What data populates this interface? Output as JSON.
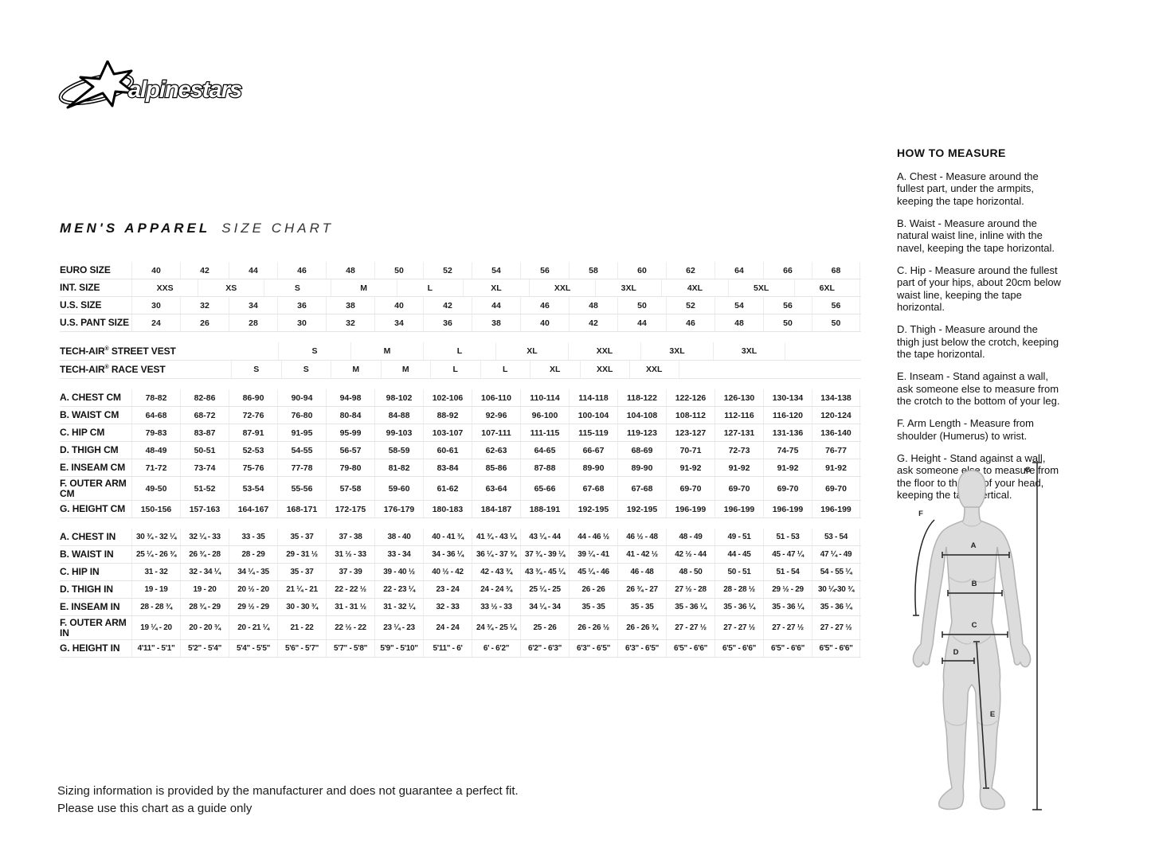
{
  "brand": {
    "logo_text": "alpinestars"
  },
  "title": {
    "main": "MEN'S APPAREL",
    "sub": "SIZE CHART"
  },
  "size_table": {
    "header_rows": [
      {
        "label": "EURO SIZE",
        "type": "cols",
        "values": [
          "40",
          "42",
          "44",
          "46",
          "48",
          "50",
          "52",
          "54",
          "56",
          "58",
          "60",
          "62",
          "64",
          "66",
          "68"
        ]
      },
      {
        "label": "INT. SIZE",
        "type": "int",
        "values": [
          "XXS",
          "XS",
          "S",
          "M",
          "L",
          "XL",
          "XXL",
          "3XL",
          "4XL",
          "5XL",
          "6XL"
        ]
      },
      {
        "label": "U.S. SIZE",
        "type": "cols",
        "values": [
          "30",
          "32",
          "34",
          "36",
          "38",
          "40",
          "42",
          "44",
          "46",
          "48",
          "50",
          "52",
          "54",
          "56",
          "56"
        ]
      },
      {
        "label": "U.S. PANT SIZE",
        "type": "cols",
        "values": [
          "24",
          "26",
          "28",
          "30",
          "32",
          "34",
          "36",
          "38",
          "40",
          "42",
          "44",
          "46",
          "48",
          "50",
          "50"
        ]
      }
    ],
    "vest_rows": [
      {
        "label": "TECH-AIR® STREET VEST",
        "type": "street",
        "values": [
          "S",
          "M",
          "L",
          "XL",
          "XXL",
          "3XL",
          "3XL"
        ]
      },
      {
        "label": "TECH-AIR® RACE VEST",
        "type": "race",
        "values": [
          "S",
          "S",
          "M",
          "M",
          "L",
          "L",
          "XL",
          "XXL",
          "XXL"
        ]
      }
    ],
    "cm_rows": [
      {
        "label": "A. CHEST CM",
        "type": "cols",
        "values": [
          "78-82",
          "82-86",
          "86-90",
          "90-94",
          "94-98",
          "98-102",
          "102-106",
          "106-110",
          "110-114",
          "114-118",
          "118-122",
          "122-126",
          "126-130",
          "130-134",
          "134-138"
        ]
      },
      {
        "label": "B. WAIST CM",
        "type": "cols",
        "values": [
          "64-68",
          "68-72",
          "72-76",
          "76-80",
          "80-84",
          "84-88",
          "88-92",
          "92-96",
          "96-100",
          "100-104",
          "104-108",
          "108-112",
          "112-116",
          "116-120",
          "120-124"
        ]
      },
      {
        "label": "C. HIP CM",
        "type": "cols",
        "values": [
          "79-83",
          "83-87",
          "87-91",
          "91-95",
          "95-99",
          "99-103",
          "103-107",
          "107-111",
          "111-115",
          "115-119",
          "119-123",
          "123-127",
          "127-131",
          "131-136",
          "136-140"
        ]
      },
      {
        "label": "D. THIGH CM",
        "type": "cols",
        "values": [
          "48-49",
          "50-51",
          "52-53",
          "54-55",
          "56-57",
          "58-59",
          "60-61",
          "62-63",
          "64-65",
          "66-67",
          "68-69",
          "70-71",
          "72-73",
          "74-75",
          "76-77"
        ]
      },
      {
        "label": "E. INSEAM CM",
        "type": "cols",
        "values": [
          "71-72",
          "73-74",
          "75-76",
          "77-78",
          "79-80",
          "81-82",
          "83-84",
          "85-86",
          "87-88",
          "89-90",
          "89-90",
          "91-92",
          "91-92",
          "91-92",
          "91-92"
        ]
      },
      {
        "label": "F. OUTER ARM CM",
        "type": "cols",
        "wrap": true,
        "values": [
          "49-50",
          "51-52",
          "53-54",
          "55-56",
          "57-58",
          "59-60",
          "61-62",
          "63-64",
          "65-66",
          "67-68",
          "67-68",
          "69-70",
          "69-70",
          "69-70",
          "69-70"
        ]
      },
      {
        "label": "G. HEIGHT CM",
        "type": "cols",
        "values": [
          "150-156",
          "157-163",
          "164-167",
          "168-171",
          "172-175",
          "176-179",
          "180-183",
          "184-187",
          "188-191",
          "192-195",
          "192-195",
          "196-199",
          "196-199",
          "196-199",
          "196-199"
        ]
      }
    ],
    "in_rows": [
      {
        "label": "A. CHEST IN",
        "type": "cols",
        "values": [
          "30 ¾ - 32 ¼",
          "32 ¼ - 33",
          "33 - 35",
          "35 - 37",
          "37 - 38",
          "38 - 40",
          "40 - 41 ¾",
          "41 ¾ - 43 ¼",
          "43 ¼ - 44",
          "44 - 46 ½",
          "46 ½ - 48",
          "48 - 49",
          "49 - 51",
          "51 - 53",
          "53 - 54"
        ]
      },
      {
        "label": "B. WAIST IN",
        "type": "cols",
        "values": [
          "25 ¼ - 26 ¾",
          "26 ¾ - 28",
          "28 - 29",
          "29 - 31 ½",
          "31 ½ - 33",
          "33 - 34",
          "34 - 36 ¼",
          "36 ¼ - 37 ¾",
          "37 ¾ - 39 ¼",
          "39 ¼ - 41",
          "41 - 42 ½",
          "42 ½ - 44",
          "44 - 45",
          "45 - 47 ¼",
          "47 ¼ - 49"
        ]
      },
      {
        "label": "C. HIP IN",
        "type": "cols",
        "values": [
          "31 - 32",
          "32 - 34 ¼",
          "34 ¼ - 35",
          "35 - 37",
          "37 - 39",
          "39 - 40 ½",
          "40 ½ - 42",
          "42 - 43 ¾",
          "43 ¾ - 45 ¼",
          "45 ¼ - 46",
          "46 - 48",
          "48 - 50",
          "50 - 51",
          "51 - 54",
          "54 - 55 ¼"
        ]
      },
      {
        "label": "D. THIGH IN",
        "type": "cols",
        "values": [
          "19 - 19",
          "19 - 20",
          "20 ½ - 20",
          "21 ¼ - 21",
          "22 - 22 ½",
          "22 - 23 ¼",
          "23 - 24",
          "24 - 24 ¾",
          "25 ¼ - 25",
          "26 - 26",
          "26 ¾ - 27",
          "27 ½ - 28",
          "28 - 28 ½",
          "29 ½ - 29",
          "30 ¼-30 ¾"
        ]
      },
      {
        "label": "E. INSEAM IN",
        "type": "cols",
        "values": [
          "28 - 28 ¾",
          "28 ¾ - 29",
          "29 ½ - 29",
          "30 - 30 ¾",
          "31 - 31 ½",
          "31 - 32 ¼",
          "32 - 33",
          "33 ½ - 33",
          "34 ¼ - 34",
          "35 - 35",
          "35 - 35",
          "35 - 36 ¼",
          "35 - 36 ¼",
          "35 - 36 ¼",
          "35 - 36 ¼"
        ]
      },
      {
        "label": "F. OUTER ARM IN",
        "type": "cols",
        "wrap": true,
        "values": [
          "19 ¼ - 20",
          "20 - 20 ¾",
          "20 - 21 ¼",
          "21 - 22",
          "22 ½ - 22",
          "23 ¼ - 23",
          "24 - 24",
          "24 ¾ - 25 ¼",
          "25 - 26",
          "26 - 26 ½",
          "26 - 26 ¾",
          "27 - 27 ½",
          "27 - 27 ½",
          "27 - 27 ½",
          "27 - 27 ½"
        ]
      },
      {
        "label": "G. HEIGHT IN",
        "type": "cols",
        "values": [
          "4'11\" - 5'1\"",
          "5'2\" - 5'4\"",
          "5'4\" - 5'5\"",
          "5'6\" - 5'7\"",
          "5'7\" - 5'8\"",
          "5'9\" - 5'10\"",
          "5'11\" - 6'",
          "6' - 6'2\"",
          "6'2\" - 6'3\"",
          "6'3\" - 6'5\"",
          "6'3\" - 6'5\"",
          "6'5\" - 6'6\"",
          "6'5\" - 6'6\"",
          "6'5\" - 6'6\"",
          "6'5\" - 6'6\""
        ]
      }
    ]
  },
  "how_to_measure": {
    "heading": "HOW TO MEASURE",
    "items": [
      "A. Chest - Measure around the fullest part, under the armpits, keeping the tape horizontal.",
      "B. Waist - Measure around the natural waist line, inline with the navel, keeping the tape horizontal.",
      "C. Hip - Measure around the fullest part of your hips, about 20cm below waist line, keeping the tape horizontal.",
      "D. Thigh - Measure around the thigh just below the crotch, keeping the tape horizontal.",
      "E. Inseam - Stand against a wall, ask someone else to measure from the crotch to the bottom of your leg.",
      "F. Arm Length - Measure from shoulder (Humerus) to wrist.",
      "G. Height - Stand against a wall, ask someone else to measure from the floor to the top of your head, keeping the tape vertical."
    ]
  },
  "figure": {
    "labels": {
      "a": "A",
      "b": "B",
      "c": "C",
      "d": "D",
      "e": "E",
      "f": "F",
      "g": "G"
    }
  },
  "footer": {
    "line1": "Sizing information is provided by the manufacturer and does not guarantee a perfect fit.",
    "line2": "Please use this chart as a guide only"
  },
  "colors": {
    "text": "#111111",
    "grid": "#e4e4e4",
    "body_fill": "#dcdcdc",
    "body_outline": "#b3b3b3"
  }
}
